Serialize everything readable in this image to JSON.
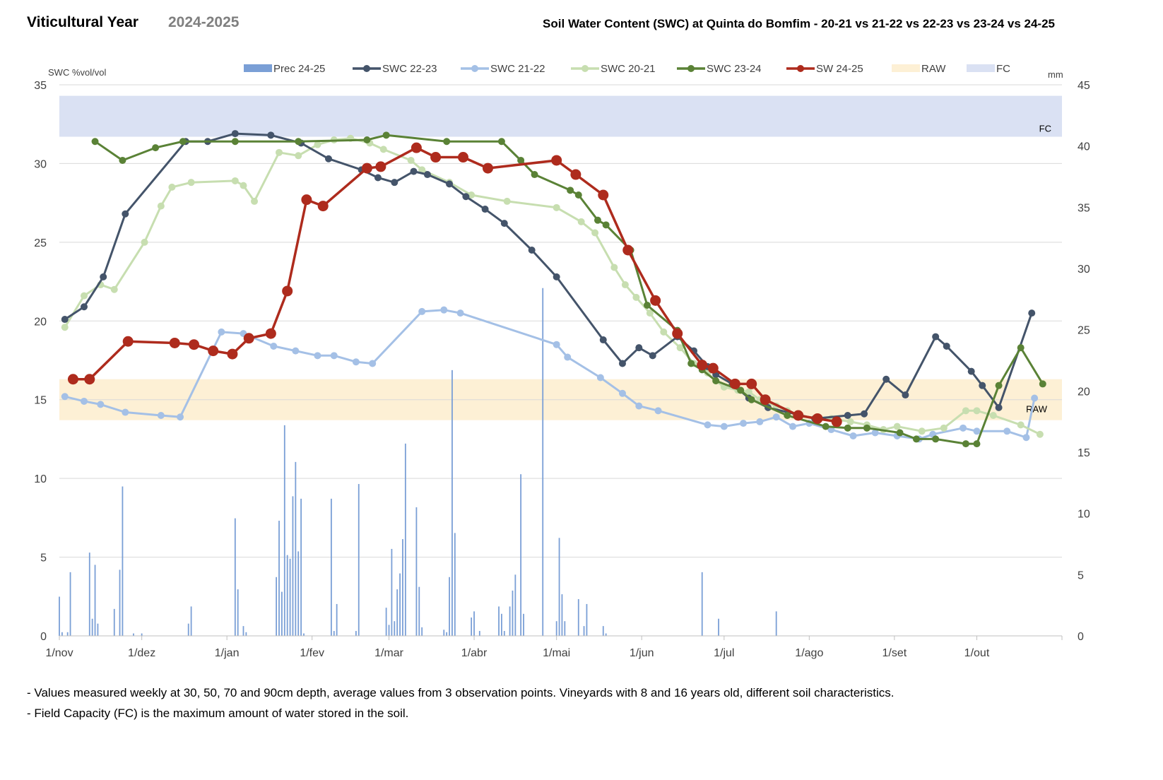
{
  "header": {
    "left_title": "Viticultural Year",
    "season": "2024-2025",
    "chart_title": "Soil Water Content (SWC) at Quinta do Bomfim - 20-21 vs 21-22 vs 22-23 vs 23-24 vs 24-25"
  },
  "notes": [
    "- Values measured weekly at 30, 50, 70 and 90cm depth, average values from 3 observation points. Vineyards with 8 and 16 years old, different soil characteristics.",
    "- Field Capacity (FC) is the maximum amount of water stored in the soil."
  ],
  "chart_data": {
    "type": "line",
    "ylabel_left": "SWC %vol/vol",
    "ylabel_right": "mm",
    "ylim_left": [
      0,
      35
    ],
    "ylim_right": [
      0,
      45
    ],
    "yticks_left": [
      0,
      5,
      10,
      15,
      20,
      25,
      30,
      35
    ],
    "yticks_right": [
      0,
      5,
      10,
      15,
      20,
      25,
      30,
      35,
      40,
      45
    ],
    "x_unit": "day of viticultural year (0 = 1 Nov)",
    "xlim": [
      0,
      365
    ],
    "month_ticks": [
      {
        "label": "1/nov",
        "day": 0
      },
      {
        "label": "1/dez",
        "day": 30
      },
      {
        "label": "1/jan",
        "day": 61
      },
      {
        "label": "1/fev",
        "day": 92
      },
      {
        "label": "1/mar",
        "day": 120
      },
      {
        "label": "1/abr",
        "day": 151
      },
      {
        "label": "1/mai",
        "day": 181
      },
      {
        "label": "1/jun",
        "day": 212
      },
      {
        "label": "1/jul",
        "day": 242
      },
      {
        "label": "1/ago",
        "day": 273
      },
      {
        "label": "1/set",
        "day": 304
      },
      {
        "label": "1/out",
        "day": 334
      }
    ],
    "bands": [
      {
        "name": "FC",
        "label": "FC",
        "y0": 31.7,
        "y1": 34.3,
        "color": "#dae1f3"
      },
      {
        "name": "RAW",
        "label": "RAW",
        "y0": 13.7,
        "y1": 16.3,
        "color": "#fdf0d5"
      }
    ],
    "precipitation": {
      "name": "Prec 24-25",
      "color": "#7a9fd6",
      "axis": "right",
      "x": [
        0,
        1,
        3,
        4,
        11,
        12,
        13,
        14,
        20,
        22,
        23,
        27,
        30,
        47,
        48,
        64,
        65,
        67,
        68,
        79,
        80,
        81,
        82,
        83,
        84,
        85,
        86,
        87,
        88,
        89,
        99,
        100,
        101,
        108,
        109,
        119,
        120,
        121,
        122,
        123,
        124,
        125,
        126,
        130,
        131,
        132,
        140,
        141,
        142,
        143,
        144,
        150,
        151,
        153,
        160,
        161,
        162,
        164,
        165,
        166,
        168,
        169,
        176,
        181,
        182,
        183,
        184,
        189,
        191,
        192,
        198,
        199,
        234,
        240,
        261
      ],
      "values": [
        3.2,
        0.3,
        0.3,
        5.2,
        6.8,
        1.4,
        5.8,
        1.0,
        2.2,
        5.4,
        12.2,
        0.2,
        0.2,
        1.0,
        2.4,
        9.6,
        3.8,
        0.8,
        0.3,
        4.8,
        9.4,
        3.6,
        17.2,
        6.6,
        6.3,
        11.4,
        14.2,
        6.9,
        11.2,
        0.2,
        11.2,
        0.4,
        2.6,
        0.4,
        12.4,
        2.3,
        0.9,
        7.1,
        1.2,
        3.8,
        5.1,
        7.9,
        15.7,
        10.5,
        4.0,
        0.7,
        0.5,
        0.3,
        4.8,
        21.7,
        8.4,
        1.5,
        2.0,
        0.4,
        2.4,
        1.8,
        0.4,
        2.4,
        3.7,
        5.0,
        13.2,
        1.8,
        28.4,
        1.2,
        8.0,
        3.4,
        1.2,
        3.0,
        0.8,
        2.6,
        0.8,
        0.2,
        5.2,
        1.4,
        2.0
      ]
    },
    "series": [
      {
        "name": "SWC 21-22",
        "color": "#a4c0e6",
        "x": [
          2,
          9,
          15,
          24,
          37,
          44,
          59,
          67,
          78,
          86,
          94,
          100,
          108,
          114,
          132,
          140,
          146,
          181,
          185,
          197,
          205,
          211,
          218,
          236,
          242,
          249,
          255,
          261,
          267,
          273,
          281,
          289,
          297,
          305,
          313,
          318,
          329,
          334,
          345,
          352,
          355
        ],
        "values": [
          15.2,
          14.9,
          14.7,
          14.2,
          14.0,
          13.9,
          19.3,
          19.2,
          18.4,
          18.1,
          17.8,
          17.8,
          17.4,
          17.3,
          20.6,
          20.7,
          20.5,
          18.5,
          17.7,
          16.4,
          15.4,
          14.6,
          14.3,
          13.4,
          13.3,
          13.5,
          13.6,
          13.9,
          13.3,
          13.5,
          13.1,
          12.7,
          12.9,
          12.7,
          12.5,
          12.8,
          13.2,
          13.0,
          13.0,
          12.6,
          15.1
        ]
      },
      {
        "name": "SWC 20-21",
        "color": "#c7deb0",
        "x": [
          2,
          9,
          15,
          20,
          31,
          37,
          41,
          48,
          64,
          67,
          71,
          80,
          87,
          94,
          100,
          106,
          113,
          118,
          128,
          132,
          142,
          150,
          163,
          181,
          190,
          195,
          202,
          206,
          210,
          215,
          220,
          226,
          231,
          236,
          239,
          242,
          247,
          251,
          255,
          261,
          265,
          269,
          275,
          281,
          288,
          294,
          300,
          305,
          314,
          322,
          330,
          334,
          340,
          350,
          357
        ],
        "values": [
          19.6,
          21.6,
          22.3,
          22.0,
          25.0,
          27.3,
          28.5,
          28.8,
          28.9,
          28.6,
          27.6,
          30.7,
          30.5,
          31.2,
          31.5,
          31.6,
          31.3,
          30.9,
          30.2,
          29.6,
          28.8,
          28.0,
          27.6,
          27.2,
          26.3,
          25.6,
          23.4,
          22.3,
          21.5,
          20.5,
          19.3,
          18.3,
          17.3,
          16.7,
          16.2,
          15.8,
          15.6,
          15.5,
          15.0,
          14.6,
          14.3,
          14.0,
          13.8,
          13.8,
          13.6,
          13.4,
          13.1,
          13.3,
          13.0,
          13.2,
          14.3,
          14.3,
          14.0,
          13.4,
          12.8
        ]
      },
      {
        "name": "SWC 22-23",
        "color": "#44546a",
        "x": [
          2,
          9,
          16,
          24,
          46,
          54,
          64,
          77,
          88,
          98,
          110,
          116,
          122,
          129,
          134,
          142,
          148,
          155,
          162,
          172,
          181,
          198,
          205,
          211,
          216,
          225,
          231,
          236,
          239,
          245,
          251,
          258,
          275,
          287,
          293,
          301,
          308,
          319,
          323,
          332,
          336,
          342,
          354
        ],
        "values": [
          20.1,
          20.9,
          22.8,
          26.8,
          31.4,
          31.4,
          31.9,
          31.8,
          31.3,
          30.3,
          29.6,
          29.1,
          28.8,
          29.5,
          29.3,
          28.7,
          27.9,
          27.1,
          26.2,
          24.5,
          22.8,
          18.8,
          17.3,
          18.3,
          17.8,
          19.0,
          18.1,
          17.1,
          16.6,
          16.0,
          15.1,
          14.5,
          13.8,
          14.0,
          14.1,
          16.3,
          15.3,
          19.0,
          18.4,
          16.8,
          15.9,
          14.5,
          20.5
        ]
      },
      {
        "name": "SWC 23-24",
        "color": "#5a8236",
        "x": [
          13,
          23,
          35,
          45,
          64,
          87,
          112,
          119,
          141,
          161,
          168,
          173,
          186,
          189,
          196,
          199,
          208,
          214,
          225,
          230,
          234,
          239,
          248,
          252,
          265,
          279,
          287,
          294,
          306,
          312,
          319,
          330,
          334,
          342,
          350,
          358
        ],
        "values": [
          31.4,
          30.2,
          31.0,
          31.4,
          31.4,
          31.4,
          31.5,
          31.8,
          31.4,
          31.4,
          30.2,
          29.3,
          28.3,
          28.0,
          26.4,
          26.1,
          24.5,
          21.0,
          19.4,
          17.3,
          16.9,
          16.2,
          15.6,
          15.0,
          14.0,
          13.3,
          13.2,
          13.2,
          12.9,
          12.5,
          12.5,
          12.2,
          12.2,
          15.9,
          18.3,
          16.0
        ]
      },
      {
        "name": "SW 24-25",
        "color": "#ae2b1d",
        "x": [
          5,
          11,
          25,
          42,
          49,
          56,
          63,
          69,
          77,
          83,
          90,
          96,
          112,
          117,
          130,
          137,
          147,
          156,
          181,
          188,
          198,
          207,
          217,
          225,
          234,
          238,
          246,
          252,
          257,
          269,
          276,
          283
        ],
        "values": [
          16.3,
          16.3,
          18.7,
          18.6,
          18.5,
          18.1,
          17.9,
          18.9,
          19.2,
          21.9,
          27.7,
          27.3,
          29.7,
          29.8,
          31.0,
          30.4,
          30.4,
          29.7,
          30.2,
          29.3,
          28.0,
          24.5,
          21.3,
          19.2,
          17.2,
          17.0,
          16.0,
          16.0,
          15.0,
          14.0,
          13.8,
          13.6
        ]
      }
    ],
    "legend": [
      {
        "label": "Prec 24-25",
        "kind": "bar",
        "color": "#7a9fd6"
      },
      {
        "label": "SWC 22-23",
        "kind": "line",
        "color": "#44546a"
      },
      {
        "label": "SWC 21-22",
        "kind": "line",
        "color": "#a4c0e6"
      },
      {
        "label": "SWC 20-21",
        "kind": "line",
        "color": "#c7deb0"
      },
      {
        "label": "SWC 23-24",
        "kind": "line",
        "color": "#5a8236"
      },
      {
        "label": "SW 24-25",
        "kind": "line",
        "color": "#ae2b1d"
      },
      {
        "label": "RAW",
        "kind": "band",
        "color": "#fdf0d5"
      },
      {
        "label": "FC",
        "kind": "band",
        "color": "#dae1f3"
      }
    ]
  }
}
